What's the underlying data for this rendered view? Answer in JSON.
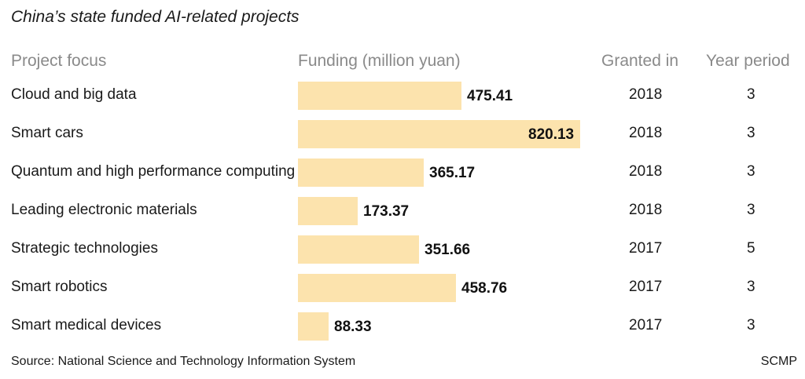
{
  "chart_data": {
    "type": "table",
    "title": "China’s state funded AI-related projects",
    "columns": [
      "Project focus",
      "Funding (million yuan)",
      "Granted in",
      "Year period"
    ],
    "value_max": 820.13,
    "rows": [
      {
        "focus": "Cloud and big data",
        "funding": 475.41,
        "funding_label": "475.41",
        "granted": "2018",
        "period": "3"
      },
      {
        "focus": "Smart cars",
        "funding": 820.13,
        "funding_label": "820.13",
        "granted": "2018",
        "period": "3"
      },
      {
        "focus": "Quantum and high performance computing",
        "funding": 365.17,
        "funding_label": "365.17",
        "granted": "2018",
        "period": "3"
      },
      {
        "focus": "Leading electronic materials",
        "funding": 173.37,
        "funding_label": "173.37",
        "granted": "2018",
        "period": "3"
      },
      {
        "focus": "Strategic technologies",
        "funding": 351.66,
        "funding_label": "351.66",
        "granted": "2017",
        "period": "5"
      },
      {
        "focus": "Smart robotics",
        "funding": 458.76,
        "funding_label": "458.76",
        "granted": "2017",
        "period": "3"
      },
      {
        "focus": "Smart medical devices",
        "funding": 88.33,
        "funding_label": "88.33",
        "granted": "2017",
        "period": "3"
      }
    ],
    "bar_color": "#fce3ad",
    "source": "Source: National Science and Technology Information System",
    "credit": "SCMP"
  }
}
